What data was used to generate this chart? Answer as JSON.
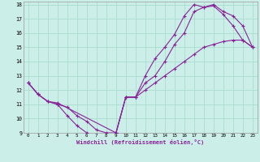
{
  "xlabel": "Windchill (Refroidissement éolien,°C)",
  "bg_color": "#cceee8",
  "grid_color": "#aaddcc",
  "line_color": "#882299",
  "xlim": [
    -0.5,
    23.5
  ],
  "ylim": [
    9,
    18.2
  ],
  "xticks": [
    0,
    1,
    2,
    3,
    4,
    5,
    6,
    7,
    8,
    9,
    10,
    11,
    12,
    13,
    14,
    15,
    16,
    17,
    18,
    19,
    20,
    21,
    22,
    23
  ],
  "yticks": [
    9,
    10,
    11,
    12,
    13,
    14,
    15,
    16,
    17,
    18
  ],
  "line1_x": [
    0,
    1,
    2,
    3,
    4,
    5,
    6,
    7,
    8,
    9,
    10,
    11,
    12,
    13,
    14,
    15,
    16,
    17,
    18,
    19,
    20,
    21,
    22,
    23
  ],
  "line1_y": [
    12.5,
    11.7,
    11.2,
    11.0,
    10.2,
    9.5,
    9.0,
    8.8,
    8.8,
    9.0,
    11.5,
    11.5,
    13.0,
    14.2,
    15.0,
    15.9,
    17.2,
    18.0,
    17.8,
    18.0,
    17.5,
    17.2,
    16.5,
    15.0
  ],
  "line2_x": [
    0,
    1,
    2,
    3,
    4,
    5,
    6,
    7,
    8,
    9,
    10,
    11,
    12,
    13,
    14,
    15,
    16,
    17,
    18,
    19,
    20,
    21,
    22,
    23
  ],
  "line2_y": [
    12.5,
    11.7,
    11.2,
    11.0,
    10.8,
    10.2,
    9.8,
    9.2,
    9.0,
    9.0,
    11.5,
    11.5,
    12.5,
    13.0,
    14.0,
    15.2,
    16.0,
    17.5,
    17.8,
    17.9,
    17.3,
    16.5,
    15.5,
    15.0
  ],
  "line3_x": [
    0,
    1,
    2,
    3,
    9,
    10,
    11,
    12,
    13,
    14,
    15,
    16,
    17,
    18,
    19,
    20,
    21,
    22,
    23
  ],
  "line3_y": [
    12.5,
    11.7,
    11.2,
    11.1,
    9.0,
    11.5,
    11.5,
    12.0,
    12.5,
    13.0,
    13.5,
    14.0,
    14.5,
    15.0,
    15.2,
    15.4,
    15.5,
    15.5,
    15.0
  ]
}
